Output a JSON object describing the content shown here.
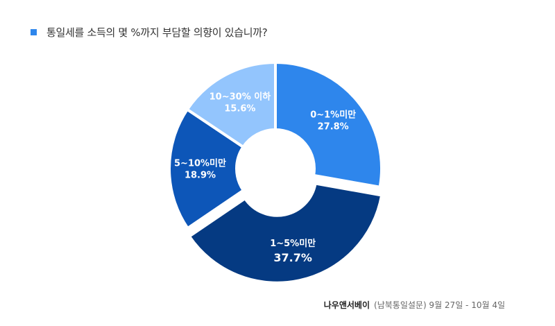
{
  "title": "통일세를 소득의 몇 %까지 부담할 의향이 있습니까?",
  "source": {
    "brand": "나우앤서베이",
    "detail": "(남북통일설문) 9월 27일 - 10월 4일"
  },
  "colors": {
    "accent": "#2e86ec"
  },
  "chart_data": {
    "type": "pie",
    "donut": true,
    "title": "통일세를 소득의 몇 %까지 부담할 의향이 있습니까?",
    "slices": [
      {
        "label": "0~1%미만",
        "value": 27.8,
        "display": "27.8%",
        "color": "#2e86ec"
      },
      {
        "label": "1~5%미만",
        "value": 37.7,
        "display": "37.7%",
        "color": "#053a82",
        "exploded": true
      },
      {
        "label": "5~10%미만",
        "value": 18.9,
        "display": "18.9%",
        "color": "#0d56b8"
      },
      {
        "label": "10~30% 이하",
        "value": 15.6,
        "display": "15.6%",
        "color": "#93c5fd"
      }
    ]
  }
}
